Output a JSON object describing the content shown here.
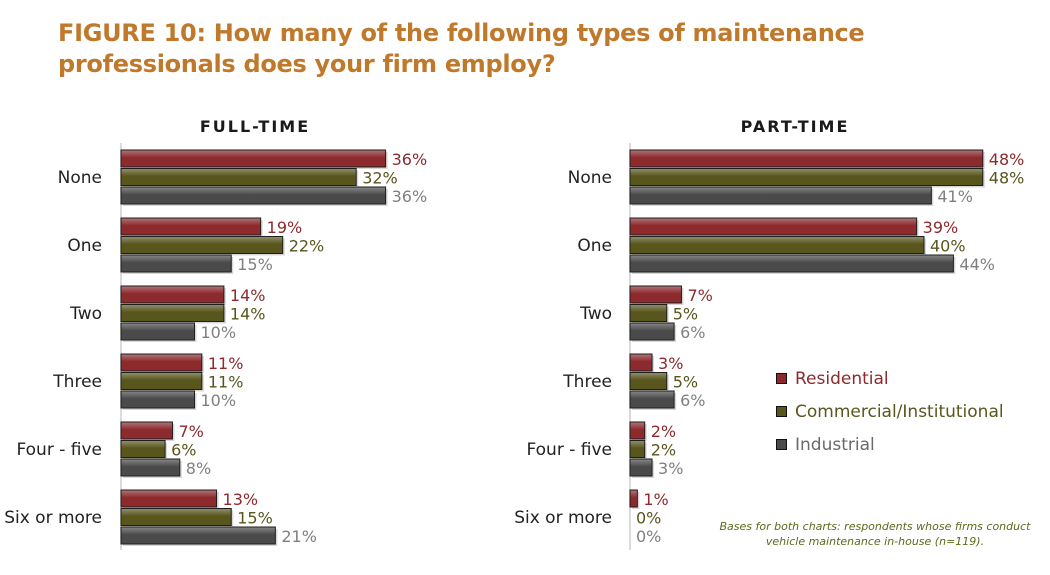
{
  "title": "FIGURE 10: How many of the following types of maintenance professionals does your firm employ?",
  "note": "Bases for both charts: respondents whose firms conduct vehicle maintenance in-house (n=119).",
  "colors": {
    "residential": "#8c2a2e",
    "commercial": "#58561d",
    "industrial": "#4a4a4a"
  },
  "label_colors": {
    "residential": "#8c2a2e",
    "commercial": "#58561d",
    "industrial": "#808080"
  },
  "legend": [
    "Residential",
    "Commercial/Institutional",
    "Industrial"
  ],
  "chart_data": [
    {
      "type": "bar",
      "orientation": "horizontal",
      "title": "FULL-TIME",
      "categories": [
        "None",
        "One",
        "Two",
        "Three",
        "Four - five",
        "Six or more"
      ],
      "series": [
        {
          "name": "Residential",
          "values": [
            36,
            19,
            14,
            11,
            7,
            13
          ],
          "labels": [
            "36%",
            "19%",
            "14%",
            "11%",
            "7%",
            "13%"
          ]
        },
        {
          "name": "Commercial/Institutional",
          "values": [
            32,
            22,
            14,
            11,
            6,
            15
          ],
          "labels": [
            "32%",
            "22%",
            "14%",
            "11%",
            "6%",
            "15%"
          ]
        },
        {
          "name": "Industrial",
          "values": [
            36,
            15,
            10,
            10,
            8,
            21
          ],
          "labels": [
            "36%",
            "15%",
            "10%",
            "10%",
            "8%",
            "21%"
          ]
        }
      ],
      "xlim": [
        0,
        50
      ]
    },
    {
      "type": "bar",
      "orientation": "horizontal",
      "title": "PART-TIME",
      "categories": [
        "None",
        "One",
        "Two",
        "Three",
        "Four - five",
        "Six or more"
      ],
      "series": [
        {
          "name": "Residential",
          "values": [
            48,
            39,
            7,
            3,
            2,
            1
          ],
          "labels": [
            "48%",
            "39%",
            "7%",
            "3%",
            "2%",
            "1%"
          ]
        },
        {
          "name": "Commercial/Institutional",
          "values": [
            48,
            40,
            5,
            5,
            2,
            0
          ],
          "labels": [
            "48%",
            "40%",
            "5%",
            "5%",
            "2%",
            "0%"
          ]
        },
        {
          "name": "Industrial",
          "values": [
            41,
            44,
            6,
            6,
            3,
            0
          ],
          "labels": [
            "41%",
            "44%",
            "6%",
            "6%",
            "3%",
            "0%"
          ]
        }
      ],
      "xlim": [
        0,
        50
      ]
    }
  ]
}
